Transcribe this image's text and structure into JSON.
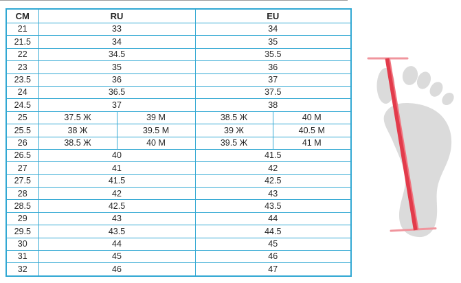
{
  "table": {
    "headers": [
      "CM",
      "RU",
      "EU"
    ],
    "rows": [
      {
        "cm": "21",
        "ru": "33",
        "eu": "34"
      },
      {
        "cm": "21.5",
        "ru": "34",
        "eu": "35"
      },
      {
        "cm": "22",
        "ru": "34.5",
        "eu": "35.5"
      },
      {
        "cm": "23",
        "ru": "35",
        "eu": "36"
      },
      {
        "cm": "23.5",
        "ru": "36",
        "eu": "37"
      },
      {
        "cm": "24",
        "ru": "36.5",
        "eu": "37.5"
      },
      {
        "cm": "24.5",
        "ru": "37",
        "eu": "38"
      },
      {
        "cm": "25",
        "ru_w": "37.5 Ж",
        "ru_m": "39 М",
        "eu_w": "38.5 Ж",
        "eu_m": "40 М"
      },
      {
        "cm": "25.5",
        "ru_w": "38 Ж",
        "ru_m": "39.5 М",
        "eu_w": "39 Ж",
        "eu_m": "40.5 М"
      },
      {
        "cm": "26",
        "ru_w": "38.5 Ж",
        "ru_m": "40 М",
        "eu_w": "39.5 Ж",
        "eu_m": "41 М"
      },
      {
        "cm": "26.5",
        "ru": "40",
        "eu": "41.5"
      },
      {
        "cm": "27",
        "ru": "41",
        "eu": "42"
      },
      {
        "cm": "27.5",
        "ru": "41.5",
        "eu": "42.5"
      },
      {
        "cm": "28",
        "ru": "42",
        "eu": "43"
      },
      {
        "cm": "28.5",
        "ru": "42.5",
        "eu": "43.5"
      },
      {
        "cm": "29",
        "ru": "43",
        "eu": "44"
      },
      {
        "cm": "29.5",
        "ru": "43.5",
        "eu": "44.5"
      },
      {
        "cm": "30",
        "ru": "44",
        "eu": "45"
      },
      {
        "cm": "31",
        "ru": "45",
        "eu": "46"
      },
      {
        "cm": "32",
        "ru": "46",
        "eu": "47"
      }
    ]
  },
  "colors": {
    "border": "#31a8d3",
    "text": "#262626",
    "foot": "#dbdbdb",
    "line_red": "#e23b4b",
    "line_red_light": "#f0737e",
    "cap_pink": "#f0959d",
    "top_rule": "#9a9a9a"
  }
}
